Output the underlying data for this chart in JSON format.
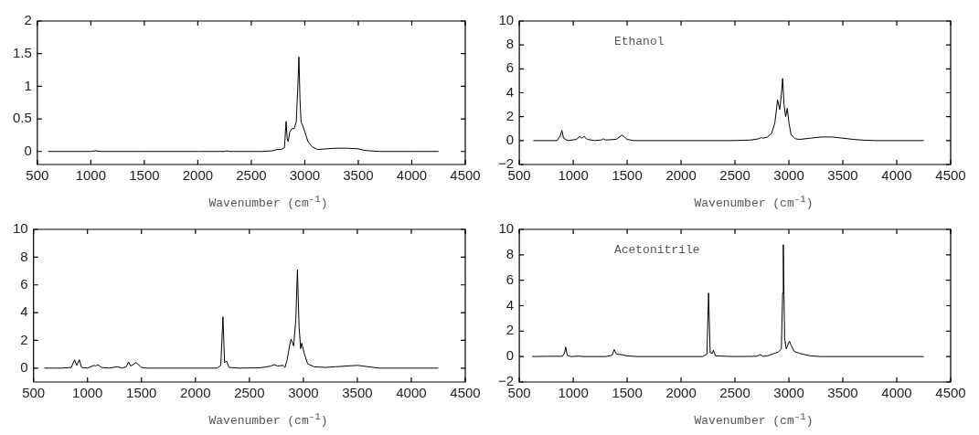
{
  "chart_data": [
    {
      "type": "line",
      "xlabel": "Wavenumber (cm$^{-1}$)",
      "xlim": [
        500,
        4500
      ],
      "xticks": [
        500,
        1000,
        1500,
        2000,
        2500,
        3000,
        3500,
        4000,
        4500
      ],
      "ylim": [
        -0.2,
        2
      ],
      "yticks": [
        0,
        0.5,
        1,
        1.5,
        2
      ],
      "grid": false,
      "legend": false,
      "marker": "none",
      "line_style": "solid",
      "series": [
        {
          "color": "#000000",
          "x": [
            600,
            1000,
            1040,
            1100,
            1500,
            2000,
            2250,
            2270,
            2300,
            2600,
            2700,
            2740,
            2780,
            2810,
            2825,
            2835,
            2845,
            2860,
            2880,
            2900,
            2920,
            2935,
            2945,
            2955,
            2965,
            2980,
            3000,
            3030,
            3070,
            3120,
            3200,
            3300,
            3400,
            3500,
            3550,
            3600,
            3700,
            4000,
            4250
          ],
          "values": [
            0,
            0,
            0.01,
            0,
            0,
            0,
            0,
            0.01,
            0,
            0,
            0.01,
            0.03,
            0.03,
            0.06,
            0.46,
            0.2,
            0.15,
            0.3,
            0.35,
            0.35,
            0.45,
            1.0,
            1.45,
            0.8,
            0.45,
            0.4,
            0.3,
            0.15,
            0.07,
            0.03,
            0.04,
            0.05,
            0.05,
            0.04,
            0.02,
            0.01,
            0,
            0,
            0
          ]
        }
      ]
    },
    {
      "type": "line",
      "xlabel": "Wavenumber (cm$^{-1}$)",
      "annotations": [
        "Ethanol"
      ],
      "xlim": [
        500,
        4500
      ],
      "xticks": [
        500,
        1000,
        1500,
        2000,
        2500,
        3000,
        3500,
        4000,
        4500
      ],
      "ylim": [
        -2,
        10
      ],
      "yticks": [
        -2,
        0,
        2,
        4,
        6,
        8,
        10
      ],
      "grid": false,
      "legend": false,
      "marker": "none",
      "line_style": "solid",
      "series": [
        {
          "color": "#000000",
          "x": [
            630,
            850,
            880,
            895,
            910,
            950,
            1030,
            1060,
            1080,
            1100,
            1130,
            1200,
            1260,
            1280,
            1300,
            1400,
            1450,
            1470,
            1500,
            1560,
            2000,
            2500,
            2650,
            2720,
            2740,
            2760,
            2800,
            2840,
            2870,
            2895,
            2915,
            2930,
            2942,
            2955,
            2970,
            2985,
            3000,
            3020,
            3060,
            3100,
            3200,
            3300,
            3400,
            3500,
            3600,
            3700,
            3800,
            4250
          ],
          "values": [
            0,
            0,
            0.4,
            0.85,
            0.2,
            0,
            0.1,
            0.35,
            0.2,
            0.35,
            0.1,
            0,
            0.05,
            0.15,
            0.05,
            0.1,
            0.45,
            0.35,
            0.1,
            0,
            0,
            0,
            0.05,
            0.15,
            0.25,
            0.2,
            0.3,
            0.6,
            1.5,
            3.4,
            2.6,
            3.8,
            5.2,
            3.0,
            2.0,
            2.7,
            1.5,
            0.5,
            0.15,
            0.1,
            0.2,
            0.3,
            0.3,
            0.2,
            0.1,
            0.03,
            0,
            0
          ]
        }
      ]
    },
    {
      "type": "line",
      "xlabel": "Wavenumber (cm$^{-1}$)",
      "xlim": [
        500,
        4500
      ],
      "xticks": [
        500,
        1000,
        1500,
        2000,
        2500,
        3000,
        3500,
        4000,
        4500
      ],
      "ylim": [
        -1,
        10
      ],
      "yticks": [
        0,
        2,
        4,
        6,
        8,
        10
      ],
      "grid": false,
      "legend": false,
      "marker": "none",
      "line_style": "solid",
      "series": [
        {
          "color": "#000000",
          "x": [
            600,
            760,
            850,
            880,
            900,
            925,
            945,
            1000,
            1060,
            1075,
            1095,
            1130,
            1200,
            1280,
            1320,
            1360,
            1380,
            1400,
            1450,
            1500,
            1550,
            2000,
            2200,
            2235,
            2255,
            2270,
            2290,
            2310,
            2400,
            2600,
            2700,
            2730,
            2760,
            2810,
            2830,
            2850,
            2870,
            2885,
            2910,
            2930,
            2945,
            2960,
            2975,
            2985,
            3010,
            3040,
            3100,
            3200,
            3300,
            3400,
            3500,
            3600,
            3700,
            4250
          ],
          "values": [
            0,
            0,
            0.05,
            0.6,
            0.2,
            0.6,
            0.05,
            0,
            0.2,
            0.15,
            0.25,
            0.05,
            0,
            0.1,
            0,
            0.1,
            0.45,
            0.15,
            0.4,
            0.05,
            0,
            0,
            0,
            0.2,
            3.7,
            0.4,
            0.5,
            0.05,
            0,
            0.02,
            0.15,
            0.25,
            0.15,
            0.2,
            0.05,
            0.6,
            1.5,
            2.1,
            1.6,
            3.5,
            7.1,
            3.0,
            1.4,
            1.8,
            1.0,
            0.3,
            0.1,
            0.05,
            0.1,
            0.15,
            0.2,
            0.1,
            0,
            0
          ]
        }
      ]
    },
    {
      "type": "line",
      "xlabel": "Wavenumber (cm$^{-1}$)",
      "annotations": [
        "Acetonitrile"
      ],
      "xlim": [
        500,
        4500
      ],
      "xticks": [
        500,
        1000,
        1500,
        2000,
        2500,
        3000,
        3500,
        4000,
        4500
      ],
      "ylim": [
        -2,
        10
      ],
      "yticks": [
        -2,
        0,
        2,
        4,
        6,
        8,
        10
      ],
      "grid": false,
      "legend": false,
      "marker": "none",
      "line_style": "solid",
      "series": [
        {
          "color": "#000000",
          "x": [
            620,
            760,
            900,
            920,
            930,
            945,
            980,
            1050,
            1100,
            1300,
            1360,
            1380,
            1400,
            1450,
            1500,
            1600,
            2000,
            2200,
            2240,
            2255,
            2270,
            2290,
            2300,
            2320,
            2500,
            2700,
            2735,
            2760,
            2800,
            2850,
            2900,
            2930,
            2942,
            2948,
            2960,
            2975,
            2990,
            3005,
            3020,
            3050,
            3100,
            3200,
            3300,
            4250
          ],
          "values": [
            0,
            0.02,
            0.02,
            0.3,
            0.75,
            0.1,
            0,
            0.03,
            0,
            0,
            0.1,
            0.55,
            0.2,
            0.15,
            0.05,
            0,
            0,
            0,
            0.2,
            5.0,
            0.3,
            0.25,
            0.5,
            0.05,
            0,
            0.02,
            0.15,
            0.02,
            0.05,
            0.2,
            0.35,
            0.6,
            5.0,
            8.8,
            1.5,
            0.6,
            0.9,
            1.2,
            0.9,
            0.4,
            0.25,
            0.05,
            0,
            0
          ]
        }
      ]
    }
  ]
}
